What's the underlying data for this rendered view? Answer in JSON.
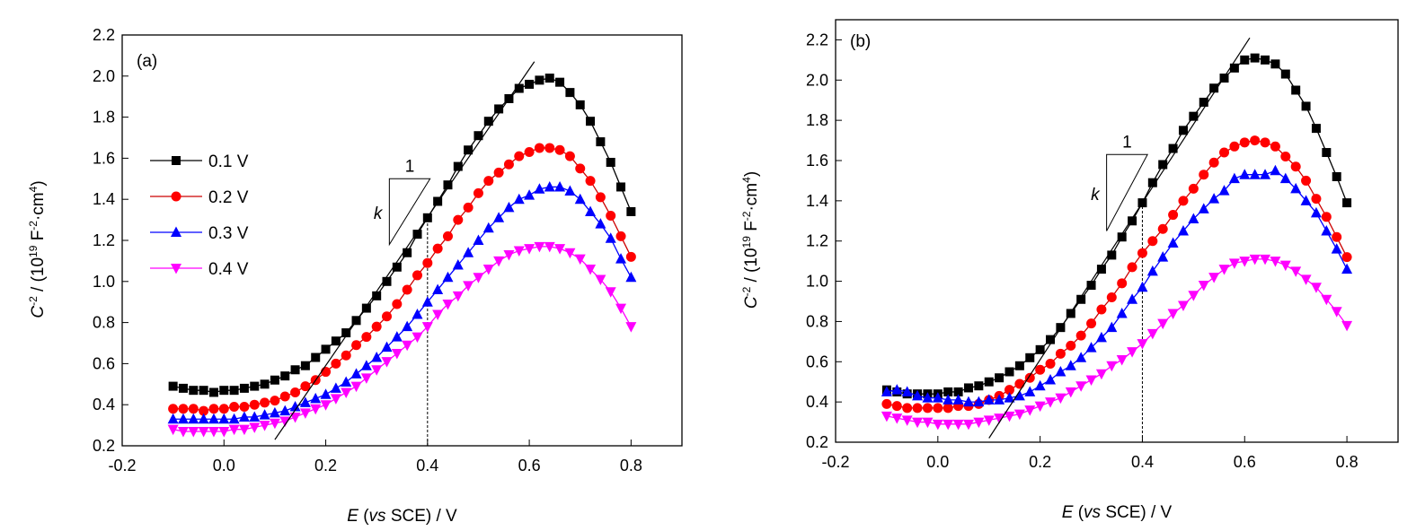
{
  "chart_data": [
    {
      "type": "line",
      "panel_label": "(a)",
      "xlim": [
        -0.2,
        0.9
      ],
      "ylim": [
        0.2,
        2.2
      ],
      "xticks": [
        "-0.2",
        "0.0",
        "0.2",
        "0.4",
        "0.6",
        "0.8"
      ],
      "yticks": [
        "0.2",
        "0.4",
        "0.6",
        "0.8",
        "1.0",
        "1.2",
        "1.4",
        "1.6",
        "1.8",
        "2.0",
        "2.2"
      ],
      "xlabel": [
        {
          "t": "E",
          "i": true
        },
        {
          "t": " ("
        },
        {
          "t": "vs",
          "i": true
        },
        {
          "t": " SCE) / V"
        }
      ],
      "ylabel": [
        {
          "t": "C",
          "i": true
        },
        {
          "t": "-2",
          "s": true
        },
        {
          "t": " / (10"
        },
        {
          "t": "19",
          "s": true
        },
        {
          "t": " F"
        },
        {
          "t": "-2",
          "s": true
        },
        {
          "t": "·cm"
        },
        {
          "t": "4",
          "s": true
        },
        {
          "t": ")"
        }
      ],
      "legend": {
        "placement": "left-middle",
        "show": true
      },
      "grid": false,
      "x": [
        -0.1,
        -0.08,
        -0.06,
        -0.04,
        -0.02,
        0,
        0.02,
        0.04,
        0.06,
        0.08,
        0.1,
        0.12,
        0.14,
        0.16,
        0.18,
        0.2,
        0.22,
        0.24,
        0.26,
        0.28,
        0.3,
        0.32,
        0.34,
        0.36,
        0.38,
        0.4,
        0.42,
        0.44,
        0.46,
        0.48,
        0.5,
        0.52,
        0.54,
        0.56,
        0.58,
        0.6,
        0.62,
        0.64,
        0.66,
        0.68,
        0.7,
        0.72,
        0.74,
        0.76,
        0.78,
        0.8
      ],
      "series": [
        {
          "name": "0.1 V",
          "color": "#000000",
          "marker": "square",
          "values": [
            0.49,
            0.48,
            0.47,
            0.47,
            0.46,
            0.47,
            0.47,
            0.48,
            0.49,
            0.5,
            0.52,
            0.54,
            0.57,
            0.59,
            0.63,
            0.67,
            0.71,
            0.75,
            0.81,
            0.87,
            0.93,
            1.0,
            1.07,
            1.14,
            1.23,
            1.31,
            1.39,
            1.47,
            1.56,
            1.64,
            1.71,
            1.78,
            1.84,
            1.89,
            1.94,
            1.96,
            1.98,
            1.99,
            1.97,
            1.92,
            1.86,
            1.78,
            1.68,
            1.58,
            1.46,
            1.34
          ]
        },
        {
          "name": "0.2 V",
          "color": "#ff0000",
          "line": "#cc0000",
          "marker": "circle",
          "values": [
            0.38,
            0.38,
            0.38,
            0.37,
            0.38,
            0.38,
            0.39,
            0.39,
            0.4,
            0.41,
            0.42,
            0.44,
            0.46,
            0.49,
            0.52,
            0.56,
            0.6,
            0.64,
            0.69,
            0.73,
            0.78,
            0.83,
            0.89,
            0.96,
            1.03,
            1.09,
            1.16,
            1.22,
            1.3,
            1.36,
            1.43,
            1.49,
            1.53,
            1.57,
            1.61,
            1.63,
            1.65,
            1.65,
            1.64,
            1.61,
            1.55,
            1.49,
            1.41,
            1.32,
            1.22,
            1.12
          ]
        },
        {
          "name": "0.3 V",
          "color": "#0000ff",
          "marker": "triangle-up",
          "values": [
            0.33,
            0.33,
            0.33,
            0.33,
            0.33,
            0.33,
            0.33,
            0.34,
            0.34,
            0.35,
            0.36,
            0.37,
            0.39,
            0.41,
            0.43,
            0.45,
            0.48,
            0.51,
            0.55,
            0.59,
            0.63,
            0.68,
            0.73,
            0.78,
            0.84,
            0.9,
            0.96,
            1.02,
            1.08,
            1.14,
            1.2,
            1.26,
            1.31,
            1.36,
            1.4,
            1.42,
            1.45,
            1.46,
            1.46,
            1.44,
            1.4,
            1.34,
            1.28,
            1.21,
            1.11,
            1.02
          ]
        },
        {
          "name": "0.4 V",
          "color": "#ff00ff",
          "marker": "triangle-down",
          "values": [
            0.28,
            0.27,
            0.27,
            0.27,
            0.27,
            0.27,
            0.28,
            0.28,
            0.29,
            0.3,
            0.31,
            0.32,
            0.34,
            0.36,
            0.38,
            0.4,
            0.43,
            0.46,
            0.49,
            0.53,
            0.57,
            0.61,
            0.65,
            0.69,
            0.73,
            0.78,
            0.84,
            0.89,
            0.93,
            0.98,
            1.02,
            1.06,
            1.1,
            1.13,
            1.15,
            1.16,
            1.17,
            1.17,
            1.16,
            1.14,
            1.11,
            1.06,
            1.01,
            0.95,
            0.87,
            0.78
          ]
        }
      ],
      "fit_line": [
        [
          0.1,
          0.23
        ],
        [
          0.61,
          2.07
        ]
      ],
      "dashed_marker_x": 0.4,
      "dashed_marker_top": 1.31,
      "slope_triangle": {
        "x0": 0.325,
        "x1": 0.405,
        "y0": 1.18,
        "y1": 1.5,
        "run_label": "1",
        "rise_label": "k"
      }
    },
    {
      "type": "line",
      "panel_label": "(b)",
      "xlim": [
        -0.2,
        0.9
      ],
      "ylim": [
        0.2,
        2.3
      ],
      "xticks": [
        "-0.2",
        "0.0",
        "0.2",
        "0.4",
        "0.6",
        "0.8"
      ],
      "yticks": [
        "0.2",
        "0.4",
        "0.6",
        "0.8",
        "1.0",
        "1.2",
        "1.4",
        "1.6",
        "1.8",
        "2.0",
        "2.2"
      ],
      "xlabel": [
        {
          "t": "E",
          "i": true
        },
        {
          "t": " ("
        },
        {
          "t": "vs",
          "i": true
        },
        {
          "t": " SCE) / V"
        }
      ],
      "ylabel": [
        {
          "t": "C",
          "i": true
        },
        {
          "t": "-2",
          "s": true
        },
        {
          "t": " / (10"
        },
        {
          "t": "19",
          "s": true
        },
        {
          "t": " F"
        },
        {
          "t": "-2",
          "s": true
        },
        {
          "t": "·cm"
        },
        {
          "t": "4",
          "s": true
        },
        {
          "t": ")"
        }
      ],
      "legend": {
        "show": false
      },
      "grid": false,
      "x": [
        -0.1,
        -0.08,
        -0.06,
        -0.04,
        -0.02,
        0,
        0.02,
        0.04,
        0.06,
        0.08,
        0.1,
        0.12,
        0.14,
        0.16,
        0.18,
        0.2,
        0.22,
        0.24,
        0.26,
        0.28,
        0.3,
        0.32,
        0.34,
        0.36,
        0.38,
        0.4,
        0.42,
        0.44,
        0.46,
        0.48,
        0.5,
        0.52,
        0.54,
        0.56,
        0.58,
        0.6,
        0.62,
        0.64,
        0.66,
        0.68,
        0.7,
        0.72,
        0.74,
        0.76,
        0.78,
        0.8
      ],
      "series": [
        {
          "name": "0.1 V",
          "color": "#000000",
          "marker": "square",
          "values": [
            0.46,
            0.45,
            0.44,
            0.44,
            0.44,
            0.44,
            0.45,
            0.45,
            0.47,
            0.48,
            0.5,
            0.52,
            0.55,
            0.58,
            0.62,
            0.66,
            0.71,
            0.77,
            0.84,
            0.91,
            0.98,
            1.06,
            1.13,
            1.22,
            1.3,
            1.39,
            1.49,
            1.58,
            1.66,
            1.75,
            1.82,
            1.89,
            1.96,
            2.01,
            2.06,
            2.1,
            2.11,
            2.1,
            2.08,
            2.03,
            1.95,
            1.87,
            1.76,
            1.64,
            1.52,
            1.39
          ]
        },
        {
          "name": "0.2 V",
          "color": "#ff0000",
          "line": "#cc0000",
          "marker": "circle",
          "values": [
            0.39,
            0.38,
            0.37,
            0.37,
            0.37,
            0.37,
            0.37,
            0.38,
            0.38,
            0.39,
            0.41,
            0.43,
            0.46,
            0.49,
            0.52,
            0.56,
            0.59,
            0.64,
            0.68,
            0.73,
            0.79,
            0.86,
            0.92,
            0.99,
            1.07,
            1.14,
            1.2,
            1.26,
            1.33,
            1.4,
            1.46,
            1.53,
            1.59,
            1.64,
            1.67,
            1.69,
            1.7,
            1.69,
            1.67,
            1.62,
            1.57,
            1.5,
            1.41,
            1.32,
            1.22,
            1.12
          ]
        },
        {
          "name": "0.3 V",
          "color": "#0000ff",
          "marker": "triangle-up",
          "values": [
            0.45,
            0.46,
            0.45,
            0.43,
            0.42,
            0.42,
            0.41,
            0.41,
            0.4,
            0.4,
            0.41,
            0.41,
            0.42,
            0.43,
            0.45,
            0.48,
            0.51,
            0.55,
            0.58,
            0.62,
            0.67,
            0.72,
            0.77,
            0.84,
            0.91,
            0.97,
            1.05,
            1.12,
            1.19,
            1.25,
            1.31,
            1.36,
            1.41,
            1.45,
            1.51,
            1.53,
            1.53,
            1.53,
            1.55,
            1.51,
            1.46,
            1.4,
            1.34,
            1.25,
            1.16,
            1.06
          ]
        },
        {
          "name": "0.4 V",
          "color": "#ff00ff",
          "marker": "triangle-down",
          "values": [
            0.33,
            0.32,
            0.31,
            0.3,
            0.3,
            0.29,
            0.29,
            0.29,
            0.29,
            0.3,
            0.31,
            0.32,
            0.33,
            0.34,
            0.36,
            0.38,
            0.4,
            0.42,
            0.45,
            0.48,
            0.51,
            0.54,
            0.58,
            0.61,
            0.65,
            0.69,
            0.74,
            0.79,
            0.84,
            0.88,
            0.93,
            0.98,
            1.02,
            1.06,
            1.09,
            1.1,
            1.11,
            1.11,
            1.1,
            1.08,
            1.05,
            1.01,
            0.97,
            0.91,
            0.85,
            0.78
          ]
        }
      ],
      "fit_line": [
        [
          0.1,
          0.22
        ],
        [
          0.61,
          2.21
        ]
      ],
      "dashed_marker_x": 0.4,
      "dashed_marker_top": 1.4,
      "slope_triangle": {
        "x0": 0.33,
        "x1": 0.41,
        "y0": 1.25,
        "y1": 1.63,
        "run_label": "1",
        "rise_label": "k"
      }
    }
  ]
}
